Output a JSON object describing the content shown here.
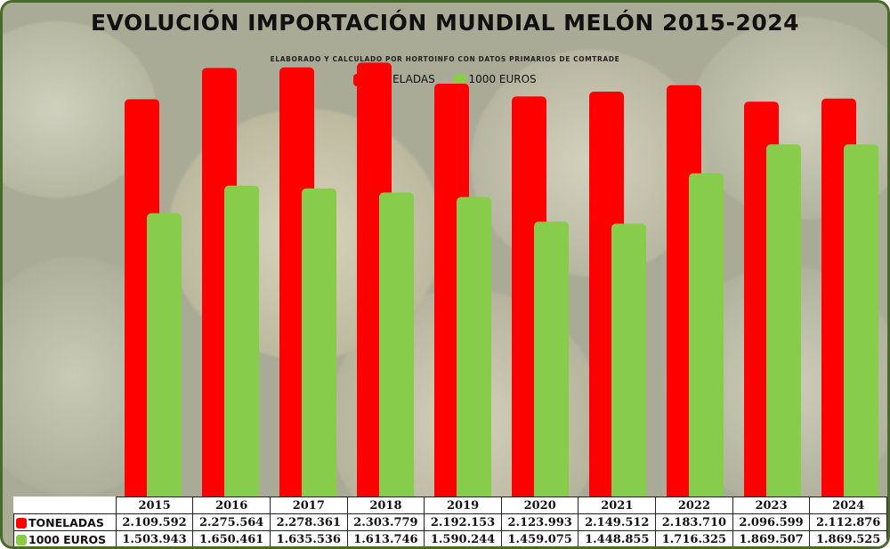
{
  "title": "EVOLUCIÓN IMPORTACIÓN MUNDIAL MELÓN 2015-2024",
  "subtitle": "ELABORADO Y CALCULADO POR HORTOINFO CON DATOS PRIMARIOS DE COMTRADE",
  "colors": {
    "toneladas": "#ff0000",
    "euros": "#88cc4c",
    "frame": "#4a6a2a"
  },
  "chart_data": {
    "type": "bar",
    "title": "EVOLUCIÓN IMPORTACIÓN MUNDIAL MELÓN 2015-2024",
    "subtitle": "ELABORADO Y CALCULADO POR HORTOINFO CON DATOS PRIMARIOS DE COMTRADE",
    "categories": [
      "2015",
      "2016",
      "2017",
      "2018",
      "2019",
      "2020",
      "2021",
      "2022",
      "2023",
      "2024"
    ],
    "series": [
      {
        "name": "TONELADAS",
        "values": [
          2109592,
          2275564,
          2278361,
          2303779,
          2192153,
          2123993,
          2149512,
          2183710,
          2096599,
          2112876
        ],
        "labels": [
          "2.109.592",
          "2.275.564",
          "2.278.361",
          "2.303.779",
          "2.192.153",
          "2.123.993",
          "2.149.512",
          "2.183.710",
          "2.096.599",
          "2.112.876"
        ]
      },
      {
        "name": "1000 EUROS",
        "values": [
          1503943,
          1650461,
          1635536,
          1613746,
          1590244,
          1459075,
          1448855,
          1716325,
          1869507,
          1869525
        ],
        "labels": [
          "1.503.943",
          "1.650.461",
          "1.635.536",
          "1.613.746",
          "1.590.244",
          "1.459.075",
          "1.448.855",
          "1.716.325",
          "1.869.507",
          "1.869.525"
        ]
      }
    ],
    "ylim": [
      0,
      2400000
    ],
    "grid": false,
    "legend": "top-center",
    "data_table": "bottom"
  }
}
